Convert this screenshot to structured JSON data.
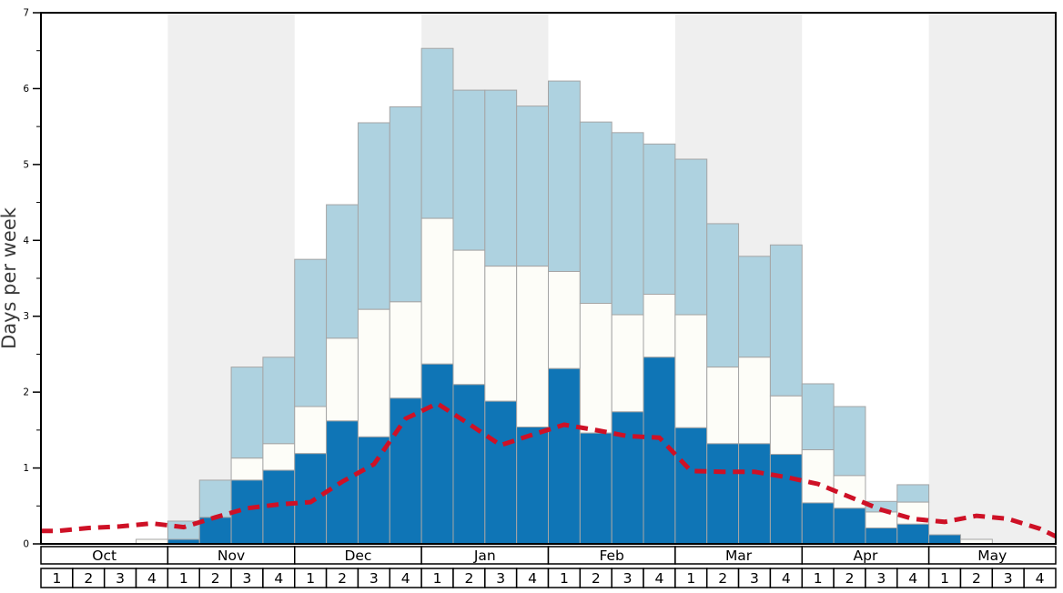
{
  "chart_data": {
    "type": "bar",
    "stacked": true,
    "title": "",
    "xlabel": "",
    "ylabel": "Days per week",
    "ylim": [
      0,
      7
    ],
    "y_tick_labels": [
      "0",
      "1",
      "2",
      "3",
      "4",
      "5",
      "6",
      "7"
    ],
    "grid": false,
    "legend": "none",
    "months": [
      "Oct",
      "Nov",
      "Dec",
      "Jan",
      "Feb",
      "Mar",
      "Apr",
      "May"
    ],
    "week_labels": [
      "1",
      "2",
      "3",
      "4"
    ],
    "shaded_months": [
      "Nov",
      "Jan",
      "Mar",
      "May"
    ],
    "series": [
      {
        "name": "dark-blue-bottom-segment",
        "color": "#0f75b6",
        "values": [
          0,
          0,
          0,
          0,
          0.06,
          0.35,
          0.84,
          0.97,
          1.19,
          1.62,
          1.41,
          1.92,
          2.37,
          2.1,
          1.88,
          1.54,
          2.31,
          1.46,
          1.74,
          2.46,
          1.53,
          1.32,
          1.32,
          1.18,
          0.54,
          0.47,
          0.21,
          0.26,
          0.12,
          0,
          0,
          0
        ]
      },
      {
        "name": "white-middle-segment",
        "color": "#fdfdf8",
        "values": [
          0,
          0,
          0,
          0.06,
          0,
          0,
          0.29,
          0.35,
          0.62,
          1.09,
          1.68,
          1.27,
          1.92,
          1.77,
          1.78,
          2.12,
          1.28,
          1.71,
          1.28,
          0.83,
          1.49,
          1.01,
          1.14,
          0.77,
          0.7,
          0.43,
          0.21,
          0.29,
          0,
          0.06,
          0,
          0
        ]
      },
      {
        "name": "light-blue-top-segment",
        "color": "#aed2e0",
        "values": [
          0,
          0,
          0,
          0,
          0.24,
          0.49,
          1.2,
          1.14,
          1.94,
          1.76,
          2.46,
          2.57,
          2.24,
          2.11,
          2.32,
          2.11,
          2.51,
          2.39,
          2.4,
          1.98,
          2.05,
          1.89,
          1.33,
          1.99,
          0.87,
          0.91,
          0.14,
          0.23,
          0,
          0,
          0,
          0
        ]
      }
    ],
    "line": {
      "name": "red-dashed-average-line",
      "color": "#ce1126",
      "style": "dashed",
      "start_edge_value": 0.17,
      "values": [
        0.17,
        0.21,
        0.23,
        0.27,
        0.22,
        0.35,
        0.47,
        0.52,
        0.55,
        0.82,
        1.05,
        1.65,
        1.85,
        1.58,
        1.3,
        1.44,
        1.57,
        1.5,
        1.42,
        1.4,
        0.96,
        0.95,
        0.95,
        0.88,
        0.79,
        0.62,
        0.45,
        0.33,
        0.29,
        0.37,
        0.33,
        0.2
      ],
      "end_edge_value": 0.1
    }
  },
  "colors": {
    "band_shade": "#efefef",
    "bar_border": "#a5a5a5",
    "frame": "#000000",
    "tick_label": "#000000",
    "axis_label": "#3a3a3a",
    "cell_bg": "#ffffff"
  }
}
